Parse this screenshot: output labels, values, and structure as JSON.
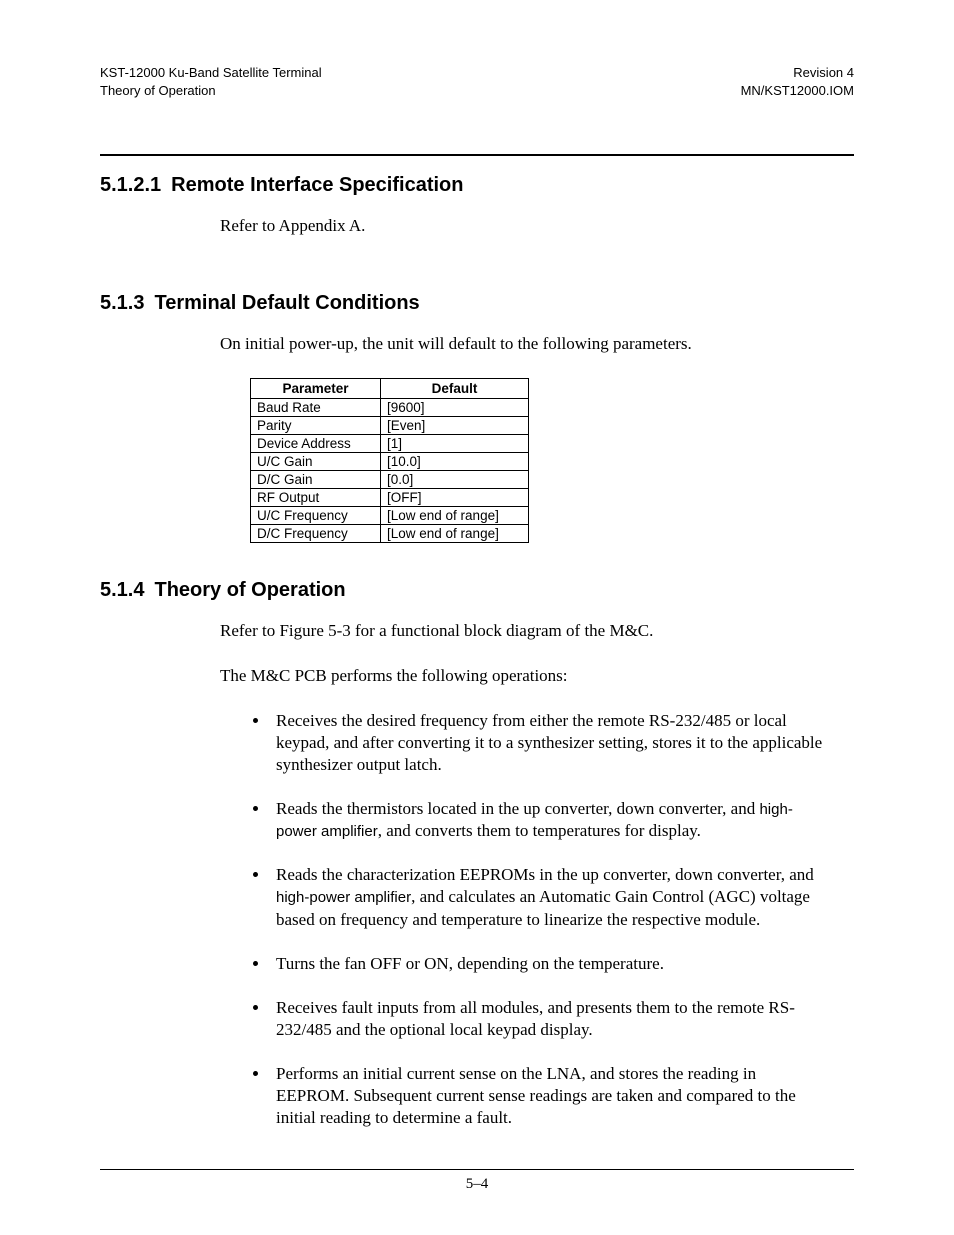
{
  "header": {
    "left1": "KST-12000 Ku-Band Satellite Terminal",
    "left2": "Theory of Operation",
    "right1": "Revision 4",
    "right2": "MN/KST12000.IOM"
  },
  "sections": {
    "s1": {
      "num": "5.1.2.1",
      "title": "Remote Interface Specification",
      "body": "Refer to Appendix A."
    },
    "s2": {
      "num": "5.1.3",
      "title": "Terminal Default Conditions",
      "body": "On initial power-up, the unit will default to the following parameters."
    },
    "s3": {
      "num": "5.1.4",
      "title": "Theory of Operation",
      "body1": "Refer to Figure 5-3 for a functional block diagram of the M&C.",
      "body2": "The M&C PCB performs the following operations:"
    }
  },
  "table": {
    "headers": {
      "param": "Parameter",
      "def": "Default"
    },
    "rows": [
      {
        "param": "Baud Rate",
        "def": "[9600]"
      },
      {
        "param": "Parity",
        "def": "[Even]"
      },
      {
        "param": "Device Address",
        "def": "[1]"
      },
      {
        "param": "U/C Gain",
        "def": "[10.0]"
      },
      {
        "param": "D/C Gain",
        "def": "[0.0]"
      },
      {
        "param": "RF Output",
        "def": "[OFF]"
      },
      {
        "param": "U/C Frequency",
        "def": "[Low end of range]"
      },
      {
        "param": "D/C Frequency",
        "def": "[Low end of range]"
      }
    ]
  },
  "ops": {
    "b1": "Receives the desired frequency from either the remote RS-232/485 or local keypad, and after converting it to a synthesizer setting, stores it to the applicable synthesizer output latch.",
    "b2a": "Reads the thermistors located in the up converter, down converter, and ",
    "b2b": "high-power amplifier",
    "b2c": ", and converts them to temperatures for display.",
    "b3a": "Reads the characterization EEPROMs in the up converter, down converter, and ",
    "b3b": "high-power amplifier",
    "b3c": ", and calculates an Automatic Gain Control (AGC) voltage based on frequency and temperature to linearize the respective module.",
    "b4": "Turns the fan OFF or ON, depending on the temperature.",
    "b5": "Receives fault inputs from all modules, and presents them to the remote RS-232/485 and the optional local keypad display.",
    "b6": "Performs an initial current sense on the LNA, and stores the reading in EEPROM. Subsequent current sense readings are taken and compared to the initial reading to determine a fault."
  },
  "footer": {
    "page": "5–4"
  }
}
